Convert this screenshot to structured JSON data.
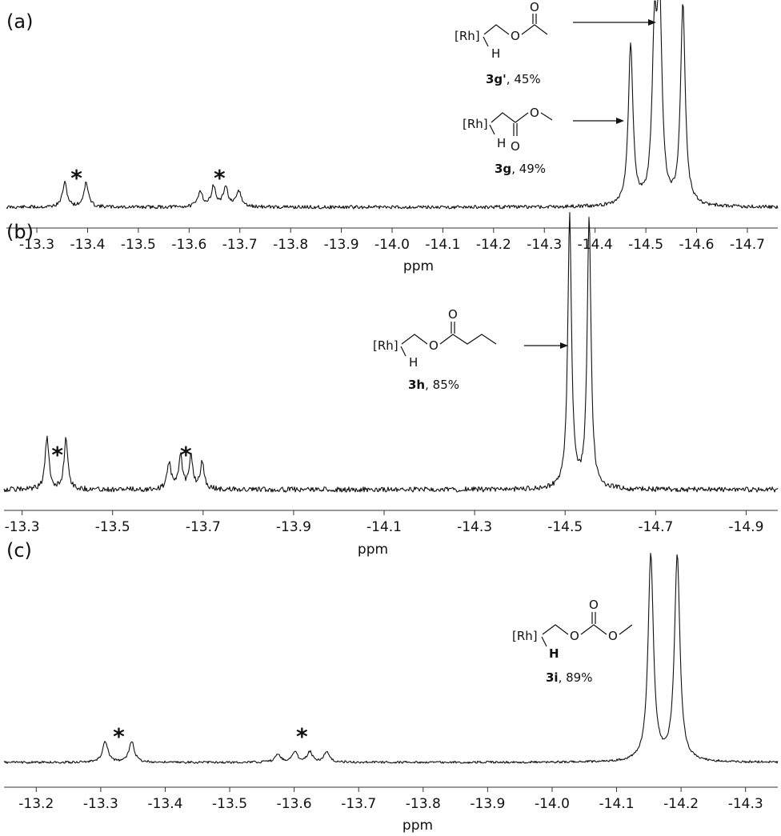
{
  "chart_data": [
    {
      "type": "line",
      "panel_label": "(a)",
      "xlabel": "ppm",
      "x_ticks": [
        "-13.3",
        "-13.4",
        "-13.5",
        "-13.6",
        "-13.7",
        "-13.8",
        "-13.9",
        "-14.0",
        "-14.1",
        "-14.2",
        "-14.3",
        "-14.4",
        "-14.5",
        "-14.6",
        "-14.7"
      ],
      "x_axis": "reversed",
      "xlim": [
        -13.24,
        -14.76
      ],
      "peaks": [
        {
          "ppm": -13.355,
          "height": 0.12
        },
        {
          "ppm": -13.397,
          "height": 0.12
        },
        {
          "ppm": -13.622,
          "height": 0.08
        },
        {
          "ppm": -13.648,
          "height": 0.1
        },
        {
          "ppm": -13.672,
          "height": 0.1
        },
        {
          "ppm": -13.698,
          "height": 0.08
        },
        {
          "ppm": -14.47,
          "height": 0.8
        },
        {
          "ppm": -14.517,
          "height": 0.78
        },
        {
          "ppm": -14.527,
          "height": 0.97
        },
        {
          "ppm": -14.573,
          "height": 1.0
        }
      ],
      "impurity_markers": [
        {
          "ppm": -13.378,
          "label": "*"
        },
        {
          "ppm": -13.66,
          "label": "*"
        }
      ],
      "annotations": [
        {
          "id": "3g_prime",
          "structure_label": "[Rh]",
          "h_label": "H",
          "o_ester": "O",
          "o_carbonyl": "O",
          "caption_bold": "3g'",
          "caption_rest": ", 45%"
        },
        {
          "id": "3g",
          "structure_label": "[Rh]",
          "h_label": "H",
          "o_ester": "O",
          "o_carbonyl": "O",
          "caption_bold": "3g",
          "caption_rest": ", 49%"
        }
      ]
    },
    {
      "type": "line",
      "panel_label": "(b)",
      "xlabel": "ppm",
      "x_ticks": [
        "-13.3",
        "-13.5",
        "-13.7",
        "-13.9",
        "-14.1",
        "-14.3",
        "-14.5",
        "-14.7",
        "-14.9"
      ],
      "x_axis": "reversed",
      "xlim": [
        -13.26,
        -14.97
      ],
      "peaks": [
        {
          "ppm": -13.355,
          "height": 0.19
        },
        {
          "ppm": -13.397,
          "height": 0.19
        },
        {
          "ppm": -13.625,
          "height": 0.1
        },
        {
          "ppm": -13.65,
          "height": 0.12
        },
        {
          "ppm": -13.673,
          "height": 0.12
        },
        {
          "ppm": -13.698,
          "height": 0.1
        },
        {
          "ppm": -14.51,
          "height": 1.0
        },
        {
          "ppm": -14.553,
          "height": 1.0
        }
      ],
      "impurity_markers": [
        {
          "ppm": -13.378,
          "label": "*"
        },
        {
          "ppm": -13.662,
          "label": "*"
        }
      ],
      "annotations": [
        {
          "id": "3h",
          "structure_label": "[Rh]",
          "h_label": "H",
          "o_ester": "O",
          "o_carbonyl": "O",
          "caption_bold": "3h",
          "caption_rest": ", 85%"
        }
      ]
    },
    {
      "type": "line",
      "panel_label": "(c)",
      "xlabel": "ppm",
      "x_ticks": [
        "-13.2",
        "-13.3",
        "-13.4",
        "-13.5",
        "-13.6",
        "-13.7",
        "-13.8",
        "-13.9",
        "-14.0",
        "-14.1",
        "-14.2",
        "-14.3"
      ],
      "x_axis": "reversed",
      "xlim": [
        -13.15,
        -14.35
      ],
      "peaks": [
        {
          "ppm": -13.307,
          "height": 0.1
        },
        {
          "ppm": -13.348,
          "height": 0.1
        },
        {
          "ppm": -13.575,
          "height": 0.04
        },
        {
          "ppm": -13.601,
          "height": 0.05
        },
        {
          "ppm": -13.624,
          "height": 0.05
        },
        {
          "ppm": -13.65,
          "height": 0.05
        },
        {
          "ppm": -14.153,
          "height": 1.0
        },
        {
          "ppm": -14.194,
          "height": 1.0
        }
      ],
      "impurity_markers": [
        {
          "ppm": -13.328,
          "label": "*"
        },
        {
          "ppm": -13.612,
          "label": "*"
        }
      ],
      "annotations": [
        {
          "id": "3i",
          "structure_label": "[Rh]",
          "h_label": "H",
          "o_ester": "O",
          "o_ether": "O",
          "o_carbonyl": "O",
          "caption_bold": "3i",
          "caption_rest": ", 89%"
        }
      ]
    }
  ]
}
